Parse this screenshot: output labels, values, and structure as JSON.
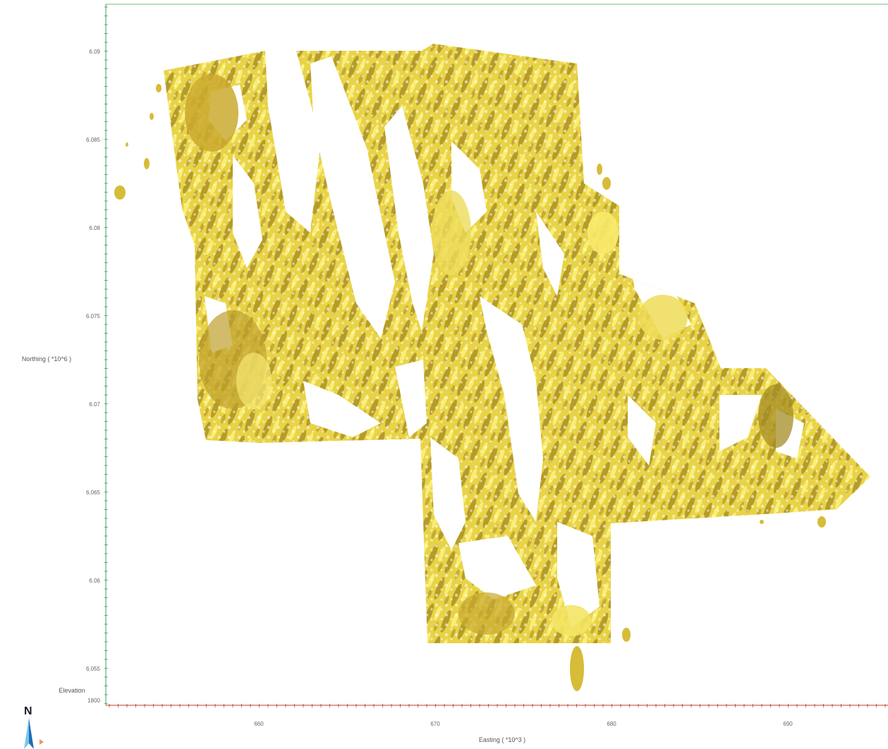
{
  "axes": {
    "northing_title": "Northing ( *10^6 )",
    "easting_title": "Easting ( *10^3 )",
    "elevation_title": "Elevation",
    "elevation_value": "1800",
    "northing_ticks": [
      "6.09",
      "6.085",
      "6.08",
      "6.075",
      "6.07",
      "6.065",
      "6.06",
      "6.055"
    ],
    "easting_ticks": [
      "660",
      "670",
      "680",
      "690"
    ]
  },
  "compass": {
    "label": "N"
  },
  "colors": {
    "surface_light": "#f2e256",
    "surface_mid": "#e3cc3c",
    "surface_dark": "#9c8720",
    "axis_green": "#3aa35a",
    "axis_red": "#c0392b"
  }
}
